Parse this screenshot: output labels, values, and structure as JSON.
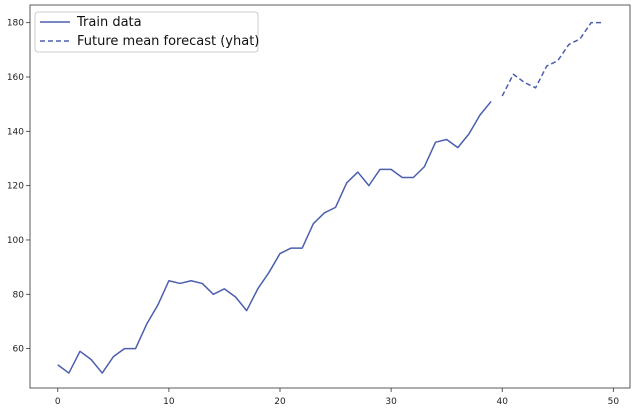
{
  "chart_data": {
    "type": "line",
    "title": "",
    "xlabel": "",
    "ylabel": "",
    "xlim": [
      -2.5,
      51.5
    ],
    "ylim": [
      45.5,
      186.5
    ],
    "xticks": [
      0,
      10,
      20,
      30,
      40,
      50
    ],
    "yticks": [
      60,
      80,
      100,
      120,
      140,
      160,
      180
    ],
    "grid": false,
    "legend_placement": "top-left",
    "series": [
      {
        "name": "Train data",
        "style": "solid",
        "color": "#4c5fad",
        "x": [
          0,
          1,
          2,
          3,
          4,
          5,
          6,
          7,
          8,
          9,
          10,
          11,
          12,
          13,
          14,
          15,
          16,
          17,
          18,
          19,
          20,
          21,
          22,
          23,
          24,
          25,
          26,
          27,
          28,
          29,
          30,
          31,
          32,
          33,
          34,
          35,
          36,
          37,
          38,
          39
        ],
        "y": [
          54,
          51,
          59,
          56,
          51,
          57,
          60,
          60,
          69,
          76,
          85,
          84,
          85,
          84,
          80,
          82,
          79,
          74,
          82,
          88,
          95,
          97,
          97,
          106,
          110,
          112,
          121,
          125,
          120,
          126,
          126,
          123,
          123,
          127,
          136,
          137,
          134,
          139,
          146,
          151
        ]
      },
      {
        "name": "Future mean forecast (yhat)",
        "style": "dashed",
        "color": "#4c5fad",
        "x": [
          40,
          41,
          42,
          43,
          44,
          45,
          46,
          47,
          48,
          49
        ],
        "y": [
          153,
          161,
          158,
          156,
          164,
          166,
          172,
          174,
          180,
          180
        ]
      }
    ]
  }
}
